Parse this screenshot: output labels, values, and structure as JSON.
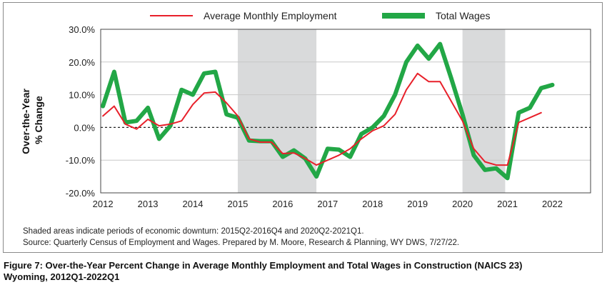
{
  "chart_data": {
    "type": "line",
    "title": "",
    "xlabel": "",
    "ylabel_lines": [
      "Over-the-Year",
      "% Change"
    ],
    "ylim": [
      -20,
      30
    ],
    "y_ticks": [
      30,
      20,
      10,
      0,
      -10,
      -20
    ],
    "y_tick_labels": [
      "30.0%",
      "20.0%",
      "10.0%",
      "0.0%",
      "-10.0%",
      "-20.0%"
    ],
    "x_ticks": [
      2012,
      2013,
      2014,
      2015,
      2016,
      2017,
      2018,
      2019,
      2020,
      2021,
      2022
    ],
    "x_tick_labels": [
      "2012",
      "2013",
      "2014",
      "2015",
      "2016",
      "2017",
      "2018",
      "2019",
      "2020",
      "2021",
      "2022"
    ],
    "xlim": [
      2011.95,
      2022.85
    ],
    "grid": true,
    "legend_position": "top-center",
    "shaded_periods": [
      {
        "start": 2015.0,
        "end": 2016.75
      },
      {
        "start": 2020.0,
        "end": 2020.95
      }
    ],
    "series": [
      {
        "name": "Average Monthly Employment",
        "color": "#e8202a",
        "width": 2,
        "x": [
          2012.0,
          2012.25,
          2012.5,
          2012.75,
          2013.0,
          2013.25,
          2013.5,
          2013.75,
          2014.0,
          2014.25,
          2014.5,
          2014.75,
          2015.0,
          2015.25,
          2015.5,
          2015.75,
          2016.0,
          2016.25,
          2016.5,
          2016.75,
          2017.0,
          2017.25,
          2017.5,
          2017.75,
          2018.0,
          2018.25,
          2018.5,
          2018.75,
          2019.0,
          2019.25,
          2019.5,
          2019.75,
          2020.0,
          2020.25,
          2020.5,
          2020.75,
          2021.0,
          2021.25,
          2021.5,
          2021.75
        ],
        "values": [
          3.5,
          6.5,
          1.0,
          -0.5,
          2.5,
          0.5,
          1.0,
          2.0,
          7.0,
          10.5,
          10.8,
          7.5,
          3.5,
          -3.5,
          -4.5,
          -4.5,
          -8.0,
          -7.8,
          -9.5,
          -11.5,
          -10.0,
          -8.5,
          -6.5,
          -3.5,
          -1.0,
          0.5,
          4.0,
          11.5,
          16.5,
          14.0,
          14.0,
          8.0,
          2.0,
          -6.5,
          -10.5,
          -11.5,
          -11.5,
          1.5,
          3.0,
          4.5
        ]
      },
      {
        "name": "Total Wages",
        "color": "#22a746",
        "width": 6,
        "x": [
          2012.0,
          2012.25,
          2012.5,
          2012.75,
          2013.0,
          2013.25,
          2013.5,
          2013.75,
          2014.0,
          2014.25,
          2014.5,
          2014.75,
          2015.0,
          2015.25,
          2015.5,
          2015.75,
          2016.0,
          2016.25,
          2016.5,
          2016.75,
          2017.0,
          2017.25,
          2017.5,
          2017.75,
          2018.0,
          2018.25,
          2018.5,
          2018.75,
          2019.0,
          2019.25,
          2019.5,
          2019.75,
          2020.0,
          2020.25,
          2020.5,
          2020.75,
          2021.0,
          2021.25,
          2021.5,
          2021.75,
          2022.0
        ],
        "values": [
          6.5,
          17.0,
          1.5,
          2.0,
          6.0,
          -3.5,
          0.5,
          11.5,
          10.0,
          16.5,
          17.0,
          4.0,
          3.0,
          -4.0,
          -4.2,
          -4.2,
          -9.0,
          -7.0,
          -9.5,
          -15.0,
          -6.5,
          -6.8,
          -9.0,
          -2.0,
          0.0,
          3.5,
          10.0,
          20.0,
          25.0,
          21.0,
          25.5,
          15.0,
          4.0,
          -8.5,
          -13.0,
          -12.5,
          -15.5,
          4.5,
          6.0,
          12.0,
          13.0
        ]
      }
    ]
  },
  "notes": {
    "shaded": "Shaded areas indicate periods of economic downturn: 2015Q2-2016Q4 and 2020Q2-2021Q1.",
    "source": "Source: Quarterly Census of Employment and Wages. Prepared by M. Moore, Research & Planning, WY DWS, 7/27/22."
  },
  "caption": {
    "line1": "Figure 7: Over-the-Year Percent Change in Average Monthly Employment and Total Wages in Construction (NAICS 23)",
    "line2": "Wyoming, 2012Q1-2022Q1"
  }
}
